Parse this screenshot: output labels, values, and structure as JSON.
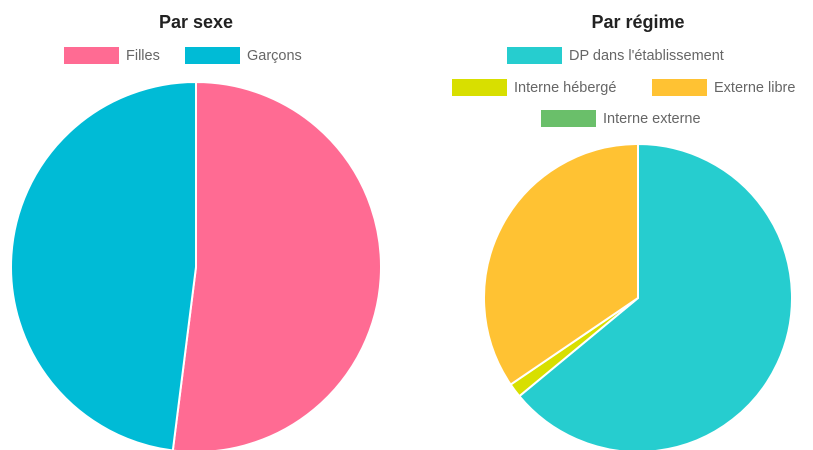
{
  "chart_data": [
    {
      "type": "pie",
      "title": "Par sexe",
      "categories": [
        "Filles",
        "Garçons"
      ],
      "values": [
        52,
        48
      ],
      "colors": [
        "#ff6b93",
        "#00bbd6"
      ],
      "legend_position": "top"
    },
    {
      "type": "pie",
      "title": "Par régime",
      "categories": [
        "DP dans l'établissement",
        "Interne hébergé",
        "Externe libre",
        "Interne externe"
      ],
      "values": [
        64,
        1.5,
        34.5,
        0
      ],
      "colors": [
        "#26cdcf",
        "#d8df00",
        "#ffc233",
        "#6abf6a"
      ],
      "legend_position": "top"
    }
  ]
}
